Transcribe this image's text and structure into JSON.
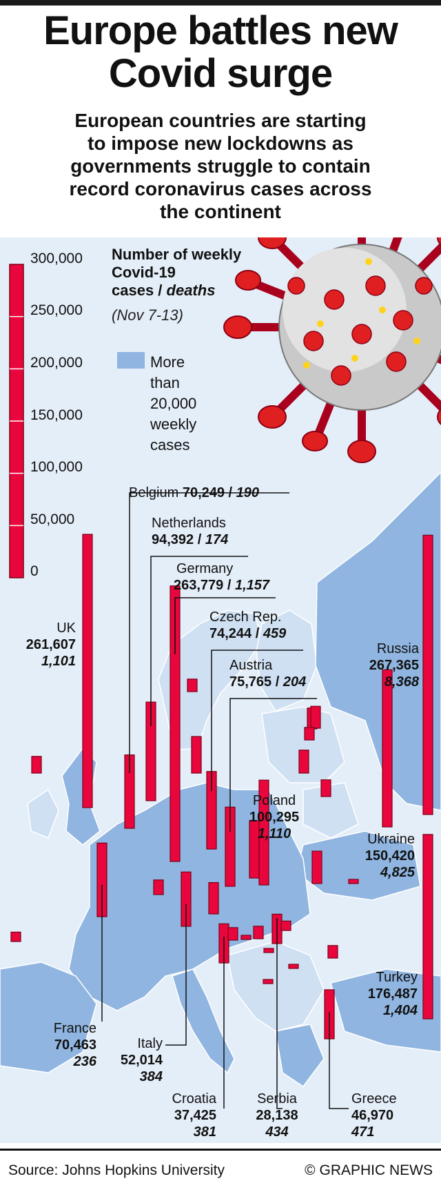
{
  "title_line1": "Europe battles new",
  "title_line2": "Covid surge",
  "subtitle_lines": [
    "European countries are starting",
    "to impose new lockdowns as",
    "governments struggle to contain",
    "record coronavirus cases across",
    "the continent"
  ],
  "legend": {
    "title_line1": "Number of weekly",
    "title_line2": "Covid-19",
    "title_line3_a": "cases / ",
    "title_line3_b": "deaths",
    "period": "(Nov 7-13)",
    "swatch_lines": [
      "More",
      "than",
      "20,000",
      "weekly",
      "cases"
    ]
  },
  "colors": {
    "bar": "#e8063c",
    "bar_edge": "#7a0018",
    "map_highlight": "#8fb5e0",
    "map_other": "#cfe0f3",
    "sea": "#e4eef8"
  },
  "icons": [
    "coronavirus-icon"
  ],
  "chart_data": {
    "type": "bar",
    "units": "weekly cases",
    "ylim": [
      0,
      300000
    ],
    "ticks": [
      "300,000",
      "250,000",
      "200,000",
      "150,000",
      "100,000",
      "50,000",
      "0"
    ],
    "labeled": [
      {
        "name": "UK",
        "cases": 261607,
        "cases_label": "261,607",
        "deaths": 1101,
        "deaths_label": "1,101"
      },
      {
        "name": "Belgium",
        "cases": 70249,
        "cases_label": "70,249",
        "deaths": 190,
        "deaths_label": "190"
      },
      {
        "name": "Netherlands",
        "cases": 94392,
        "cases_label": "94,392",
        "deaths": 174,
        "deaths_label": "174"
      },
      {
        "name": "Germany",
        "cases": 263779,
        "cases_label": "263,779",
        "deaths": 1157,
        "deaths_label": "1,157"
      },
      {
        "name": "Czech Rep.",
        "cases": 74244,
        "cases_label": "74,244",
        "deaths": 459,
        "deaths_label": "459"
      },
      {
        "name": "Austria",
        "cases": 75765,
        "cases_label": "75,765",
        "deaths": 204,
        "deaths_label": "204"
      },
      {
        "name": "Poland",
        "cases": 100295,
        "cases_label": "100,295",
        "deaths": 1110,
        "deaths_label": "1,110"
      },
      {
        "name": "Russia",
        "cases": 267365,
        "cases_label": "267,365",
        "deaths": 8368,
        "deaths_label": "8,368"
      },
      {
        "name": "Ukraine",
        "cases": 150420,
        "cases_label": "150,420",
        "deaths": 4825,
        "deaths_label": "4,825"
      },
      {
        "name": "Turkey",
        "cases": 176487,
        "cases_label": "176,487",
        "deaths": 1404,
        "deaths_label": "1,404"
      },
      {
        "name": "France",
        "cases": 70463,
        "cases_label": "70,463",
        "deaths": 236,
        "deaths_label": "236"
      },
      {
        "name": "Italy",
        "cases": 52014,
        "cases_label": "52,014",
        "deaths": 384,
        "deaths_label": "384"
      },
      {
        "name": "Croatia",
        "cases": 37425,
        "cases_label": "37,425",
        "deaths": 381,
        "deaths_label": "381"
      },
      {
        "name": "Serbia",
        "cases": 28138,
        "cases_label": "28,138",
        "deaths": 434,
        "deaths_label": "434"
      },
      {
        "name": "Greece",
        "cases": 46970,
        "cases_label": "46,970",
        "deaths": 471,
        "deaths_label": "471"
      }
    ],
    "unlabeled_cases": [
      16000,
      9000,
      12000,
      35000,
      14000,
      30000,
      55000,
      12000,
      31000,
      9000,
      12000,
      20000,
      21000,
      12000,
      22000,
      16000,
      2500,
      12000,
      3000,
      2000,
      2500,
      2000
    ]
  },
  "source": "Source: Johns Hopkins University",
  "credit": "© GRAPHIC NEWS"
}
